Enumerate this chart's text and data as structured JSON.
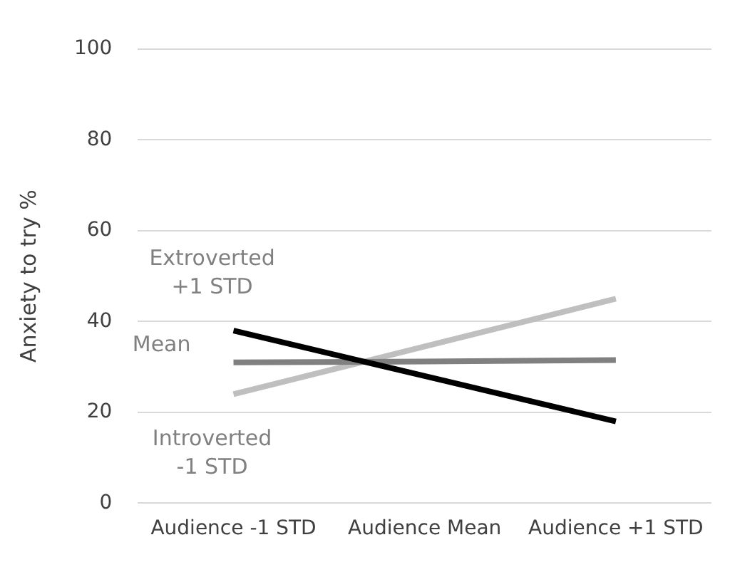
{
  "chart_data": {
    "type": "line",
    "ylabel": "Anxiety to try %",
    "categories": [
      "Audience -1 STD",
      "Audience Mean",
      "Audience +1 STD"
    ],
    "series": [
      {
        "name": "Extroverted +1 STD",
        "color": "#000000",
        "values": [
          38,
          28,
          18
        ]
      },
      {
        "name": "Mean",
        "color": "#808080",
        "values": [
          31,
          31.2,
          31.5
        ]
      },
      {
        "name": "Introverted -1 STD",
        "color": "#bfbfbf",
        "values": [
          24,
          34.5,
          45
        ]
      }
    ],
    "ylim": [
      0,
      100
    ],
    "yticks": [
      0,
      20,
      40,
      60,
      80,
      100
    ],
    "grid": "y",
    "legend": false,
    "marker": "none",
    "line_style": "solid"
  }
}
